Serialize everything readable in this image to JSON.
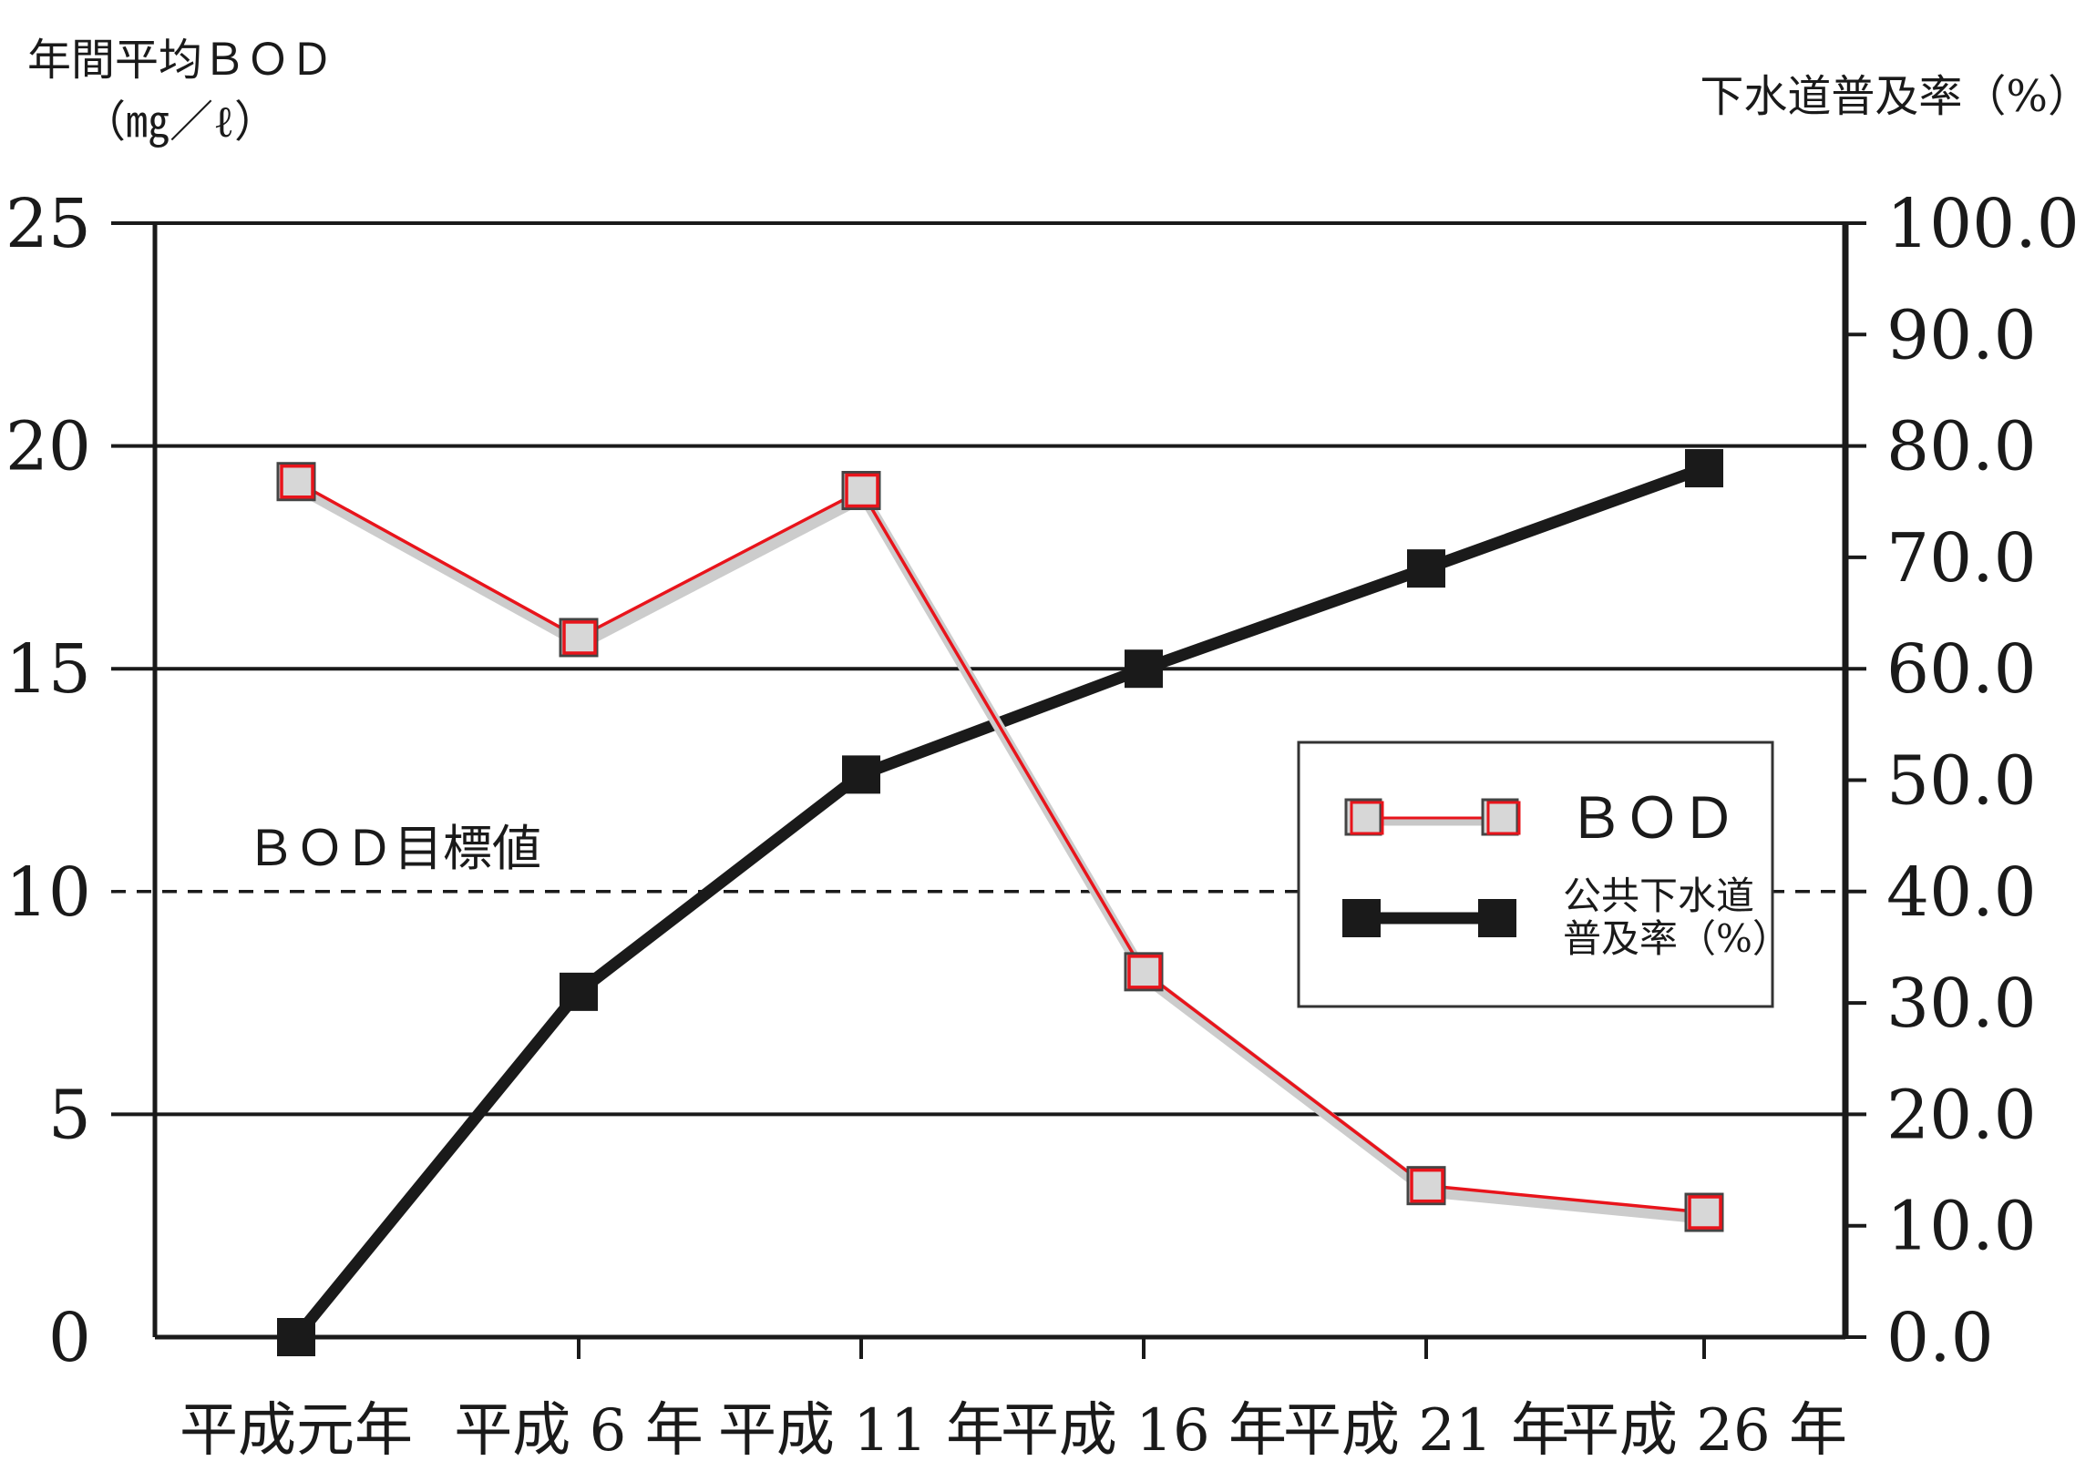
{
  "chart_data": {
    "type": "line",
    "categories": [
      "平成元年",
      "平成 6 年",
      "平成 11 年",
      "平成 16 年",
      "平成 21 年",
      "平成 26 年"
    ],
    "y_left": {
      "label_line1": "年間平均ＢＯＤ",
      "label_line2": "（㎎／ℓ）",
      "ticks": [
        "0",
        "5",
        "10",
        "15",
        "20",
        "25"
      ],
      "range": [
        0,
        25
      ]
    },
    "y_right": {
      "label": "下水道普及率（%）",
      "ticks": [
        "0.0",
        "10.0",
        "20.0",
        "30.0",
        "40.0",
        "50.0",
        "60.0",
        "70.0",
        "80.0",
        "90.0",
        "100.0"
      ],
      "range": [
        0,
        100
      ]
    },
    "series": [
      {
        "name": "ＢＯＤ",
        "axis": "left",
        "color": "#e8141b",
        "marker": "square-open-red",
        "values": [
          19.2,
          15.7,
          19.0,
          8.2,
          3.4,
          2.8
        ]
      },
      {
        "name": "公共下水道普及率（%）",
        "axis": "right",
        "color": "#1a1a1a",
        "marker": "square-filled",
        "values": [
          0.0,
          31.0,
          50.5,
          60.0,
          69.0,
          78.0
        ]
      }
    ],
    "reference_line": {
      "label": "ＢＯＤ目標値",
      "value": 10,
      "axis": "left",
      "style": "dashed"
    },
    "grid": true,
    "legend": {
      "placement": "center-right",
      "entries": [
        "ＢＯＤ",
        "公共下水道",
        "普及率（%）"
      ]
    }
  }
}
